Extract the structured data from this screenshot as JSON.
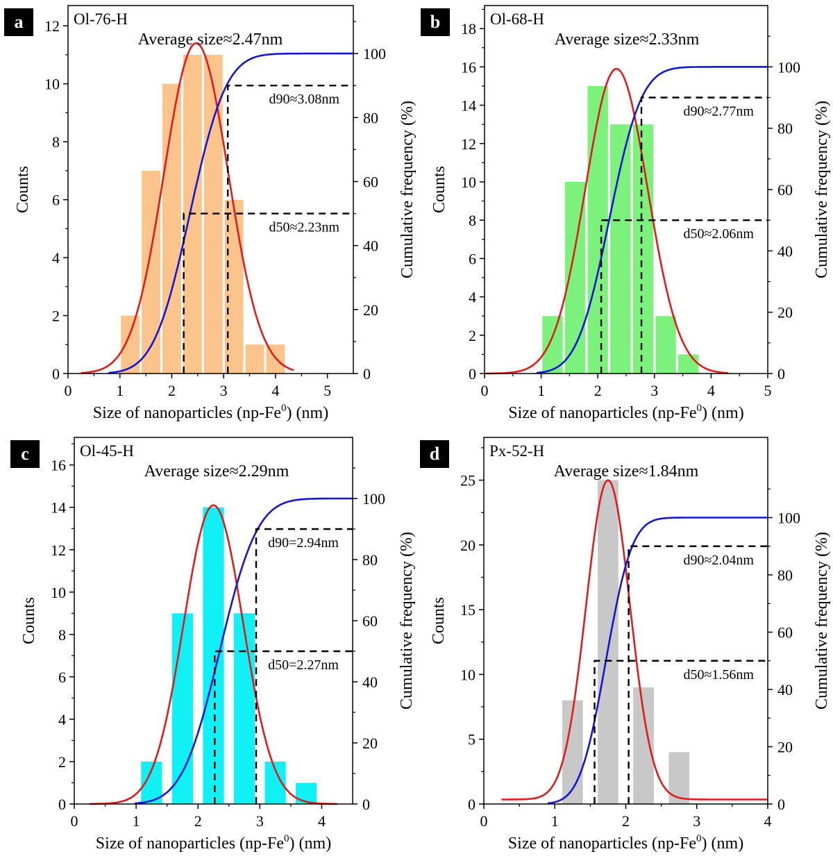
{
  "figure": {
    "x_axis_label_prefix": "Size of nanoparticles (np-Fe",
    "x_axis_label_sup": "0",
    "x_axis_label_suffix": ") (nm)"
  },
  "chart_data": [
    {
      "panel": "a",
      "type": "bar",
      "sample": "Ol-76-H",
      "title": "Average size≈2.47nm",
      "xlabel": "Size of nanoparticles (np-Fe0) (nm)",
      "ylabel": "Counts",
      "y2label": "Cumulative frequency (%)",
      "xlim": [
        0,
        5.5
      ],
      "xticks": [
        0,
        1,
        2,
        3,
        4,
        5
      ],
      "ylim": [
        0,
        12.7
      ],
      "yticks": [
        0,
        2,
        4,
        6,
        8,
        10,
        12
      ],
      "y2lim": [
        0,
        115
      ],
      "y2ticks": [
        0,
        20,
        40,
        60,
        80,
        100
      ],
      "bar_color": "#FBC48C",
      "bar_width": 0.36,
      "bars": {
        "x": [
          1.2,
          1.6,
          2.0,
          2.4,
          2.8,
          3.2,
          3.6,
          4.0
        ],
        "counts": [
          2,
          7,
          10,
          11,
          11,
          6,
          1,
          1
        ]
      },
      "gauss_fit": {
        "mean": 2.47,
        "sigma": 0.62,
        "peak": 11.4,
        "x_range": [
          0.25,
          4.35
        ],
        "color": "#E11B1B"
      },
      "cumulative_fit": {
        "center": 2.35,
        "sigma": 0.55,
        "max": 100,
        "color": "#1515D5"
      },
      "d50": {
        "value": 2.23,
        "label": "d50≈2.23nm",
        "percent": 50
      },
      "d90": {
        "value": 3.08,
        "label": "d90≈3.08nm",
        "percent": 90
      }
    },
    {
      "panel": "b",
      "type": "bar",
      "sample": "Ol-68-H",
      "title": "Average size≈2.33nm",
      "xlabel": "Size of nanoparticles (np-Fe0) (nm)",
      "ylabel": "Counts",
      "y2label": "Cumulative frequency (%)",
      "xlim": [
        0,
        5
      ],
      "xticks": [
        0,
        1,
        2,
        3,
        4,
        5
      ],
      "ylim": [
        0,
        19.2
      ],
      "yticks": [
        0,
        2,
        4,
        6,
        8,
        10,
        12,
        14,
        16,
        18
      ],
      "y2lim": [
        0,
        120
      ],
      "y2ticks": [
        0,
        20,
        40,
        60,
        80,
        100
      ],
      "bar_color": "#7CF27C",
      "bar_width": 0.36,
      "bars": {
        "x": [
          1.2,
          1.6,
          2.0,
          2.4,
          2.8,
          3.2,
          3.6
        ],
        "counts": [
          3,
          10,
          15,
          13,
          13,
          3,
          1
        ]
      },
      "gauss_fit": {
        "mean": 2.33,
        "sigma": 0.55,
        "peak": 15.9,
        "x_range": [
          0.0,
          4.3
        ],
        "color": "#E11B1B"
      },
      "cumulative_fit": {
        "center": 2.2,
        "sigma": 0.45,
        "max": 100,
        "color": "#1515D5"
      },
      "d50": {
        "value": 2.06,
        "label": "d50≈2.06nm",
        "percent": 50
      },
      "d90": {
        "value": 2.77,
        "label": "d90≈2.77nm",
        "percent": 90
      }
    },
    {
      "panel": "c",
      "type": "bar",
      "sample": "Ol-45-H",
      "title": "Average size≈2.29nm",
      "xlabel": "Size of nanoparticles (np-Fe0) (nm)",
      "ylabel": "Counts",
      "y2label": "Cumulative frequency (%)",
      "xlim": [
        0,
        4.5
      ],
      "xticks": [
        0,
        1,
        2,
        3,
        4
      ],
      "ylim": [
        0,
        17.3
      ],
      "yticks": [
        0,
        2,
        4,
        6,
        8,
        10,
        12,
        14,
        16
      ],
      "y2lim": [
        0,
        120
      ],
      "y2ticks": [
        0,
        20,
        40,
        60,
        80,
        100
      ],
      "bar_color": "#11F1F5",
      "bar_width": 0.34,
      "bars": {
        "x": [
          1.25,
          1.75,
          2.25,
          2.75,
          3.25,
          3.75
        ],
        "counts": [
          2,
          9,
          14,
          9,
          2,
          1
        ]
      },
      "gauss_fit": {
        "mean": 2.25,
        "sigma": 0.48,
        "peak": 14.1,
        "x_range": [
          0.25,
          4.25
        ],
        "color": "#E11B1B"
      },
      "cumulative_fit": {
        "center": 2.35,
        "sigma": 0.48,
        "max": 100,
        "color": "#1515D5"
      },
      "d50": {
        "value": 2.27,
        "label": "d50=2.27nm",
        "percent": 50
      },
      "d90": {
        "value": 2.94,
        "label": "d90=2.94nm",
        "percent": 90
      }
    },
    {
      "panel": "d",
      "type": "bar",
      "sample": "Px-52-H",
      "title": "Average size≈1.84nm",
      "xlabel": "Size of nanoparticles (np-Fe0) (nm)",
      "ylabel": "Counts",
      "y2label": "Cumulative frequency (%)",
      "xlim": [
        0,
        4
      ],
      "xticks": [
        0,
        1,
        2,
        3,
        4
      ],
      "ylim": [
        0,
        28.3
      ],
      "yticks": [
        0,
        5,
        10,
        15,
        20,
        25
      ],
      "y2lim": [
        0,
        128
      ],
      "y2ticks": [
        0,
        20,
        40,
        60,
        80,
        100
      ],
      "bar_color": "#C8C8C8",
      "bar_width": 0.29,
      "bars": {
        "x": [
          1.25,
          1.75,
          2.25,
          2.75
        ],
        "counts": [
          8,
          25,
          9,
          4
        ]
      },
      "gauss_fit": {
        "mean": 1.75,
        "sigma": 0.31,
        "peak": 25.0,
        "offset": 0.35,
        "x_range": [
          0.25,
          4.0
        ],
        "color": "#E11B1B"
      },
      "cumulative_fit": {
        "center": 1.72,
        "sigma": 0.29,
        "max": 100,
        "color": "#1515D5"
      },
      "d50": {
        "value": 1.56,
        "label": "d50≈1.56nm",
        "percent": 50
      },
      "d90": {
        "value": 2.04,
        "label": "d90≈2.04nm",
        "percent": 90
      }
    }
  ]
}
